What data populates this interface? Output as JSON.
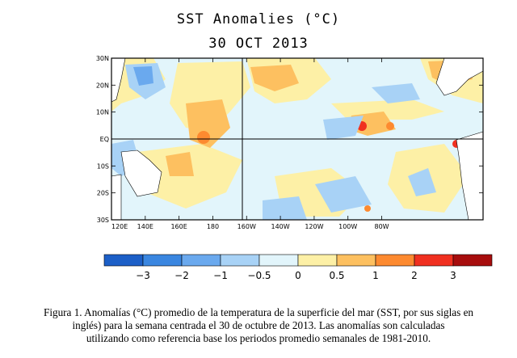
{
  "title_line1": "SST Anomalies (°C)",
  "title_line2": "30 OCT 2013",
  "lat_labels": [
    "30N",
    "20N",
    "10N",
    "EQ",
    "10S",
    "20S",
    "30S"
  ],
  "lon_labels": [
    "120E",
    "140E",
    "160E",
    "180",
    "160W",
    "140W",
    "120W",
    "100W",
    "80W"
  ],
  "colorbar": {
    "labels": [
      "−3",
      "−2",
      "−1",
      "−0.5",
      "0",
      "0.5",
      "1",
      "2",
      "3"
    ],
    "colors": [
      "#1c5fc7",
      "#3a86e0",
      "#6aa9ee",
      "#a8d2f6",
      "#e2f5fb",
      "#fdf0a6",
      "#fdc060",
      "#fd8a30",
      "#f03020",
      "#a70d0d"
    ]
  },
  "field_colors": {
    "warm_light": "#fdf0a6",
    "warm_med": "#fdc060",
    "warm_strong": "#fd8a30",
    "warm_max": "#f03020",
    "cool_light": "#a8d2f6",
    "cool_med": "#6aa9ee",
    "cool_strong": "#3a86e0",
    "neutral": "#e2f5fb"
  },
  "caption": [
    "Figura 1. Anomalías (°C) promedio de la temperatura de la superficie del mar (SST, por sus siglas en",
    "inglés) para la semana centrada el 30 de octubre de 2013.   Las anomalías son calculadas",
    "utilizando como referencia base los periodos promedio semanales de 1981-2010."
  ]
}
